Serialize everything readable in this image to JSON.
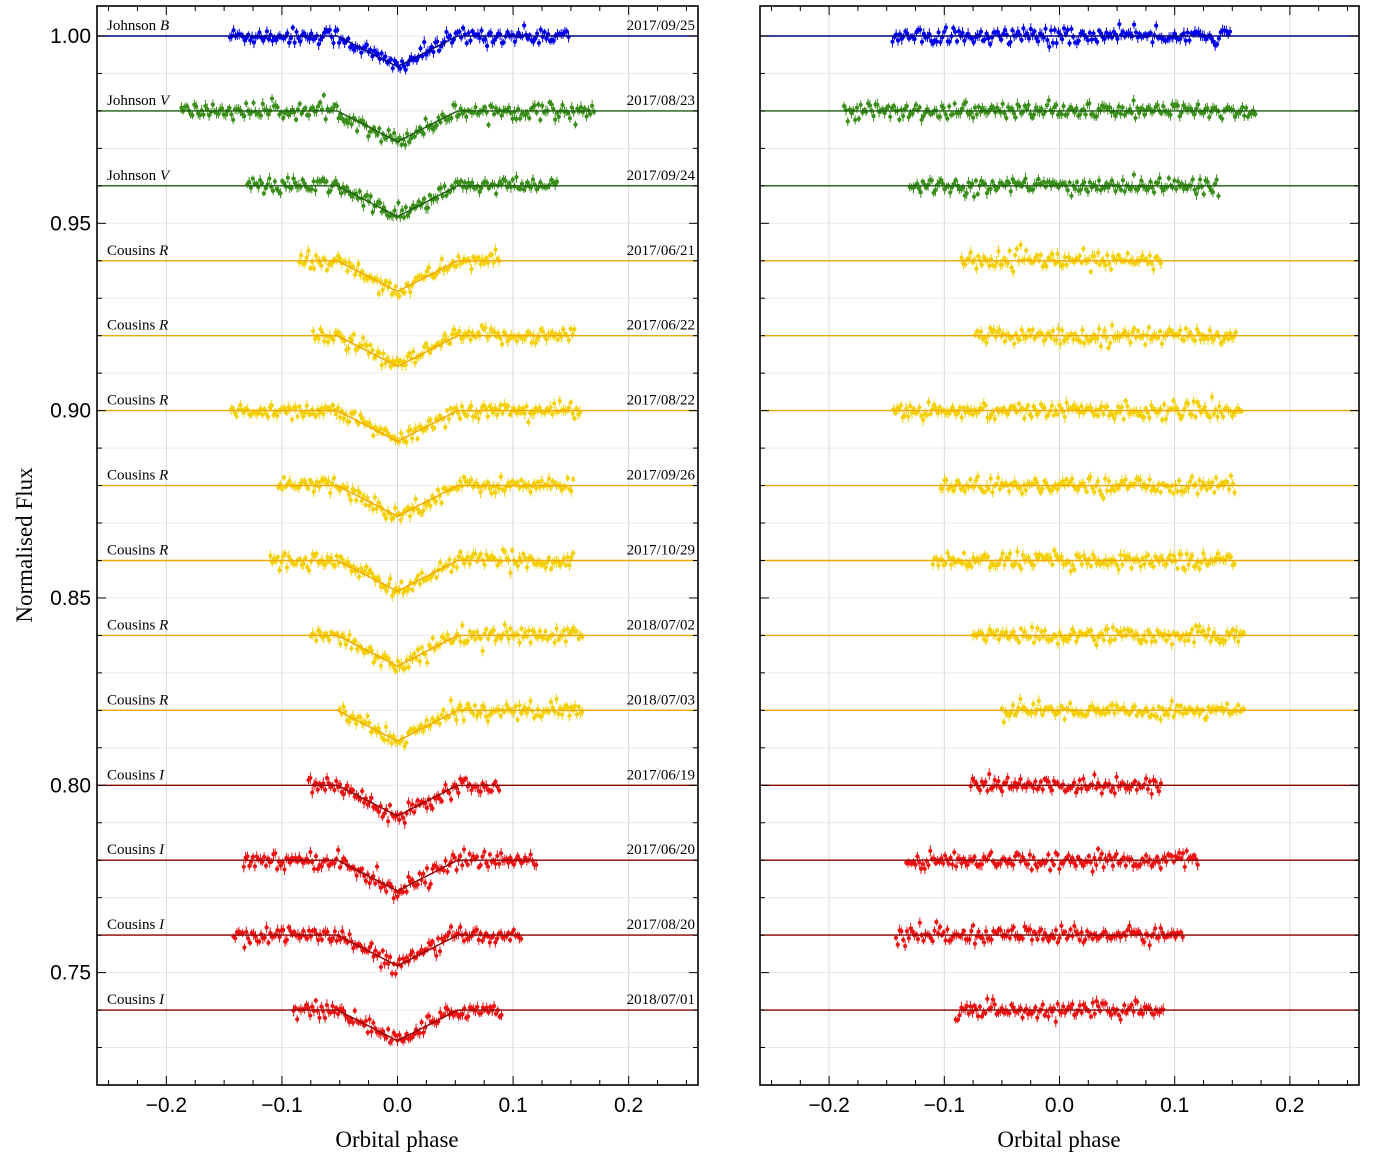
{
  "chart_data": [
    {
      "type": "scatter",
      "panel": "light curves with transit model",
      "xlabel": "Orbital phase",
      "ylabel": "Normalised Flux",
      "xlim": [
        -0.26,
        0.26
      ],
      "ylim": [
        0.72,
        1.008
      ],
      "xticks": [
        -0.2,
        -0.1,
        0.0,
        0.1,
        0.2
      ],
      "xtick_labels": [
        "−0.2",
        "−0.1",
        "0.0",
        "0.1",
        "0.2"
      ],
      "yticks": [
        0.75,
        0.8,
        0.85,
        0.9,
        0.95,
        1.0
      ],
      "ytick_labels": [
        "0.75",
        "0.80",
        "0.85",
        "0.90",
        "0.95",
        "1.00"
      ],
      "grid": true,
      "transit": {
        "depth": 0.0165,
        "ingress_start": -0.052,
        "full_start": -0.04,
        "full_end": 0.04,
        "egress_end": 0.052
      },
      "series": [
        {
          "band": "Johnson",
          "filter": "B",
          "date": "2017/09/25",
          "baseline": 1.0,
          "x_range": [
            -0.145,
            0.148
          ],
          "color": "#0000ee",
          "model_color": "#000080"
        },
        {
          "band": "Johnson",
          "filter": "V",
          "date": "2017/08/23",
          "baseline": 0.98,
          "x_range": [
            -0.187,
            0.17
          ],
          "color": "#3a8f1a",
          "model_color": "#1e5b10"
        },
        {
          "band": "Johnson",
          "filter": "V",
          "date": "2017/09/24",
          "baseline": 0.96,
          "x_range": [
            -0.13,
            0.138
          ],
          "color": "#3a8f1a",
          "model_color": "#1e5b10"
        },
        {
          "band": "Cousins",
          "filter": "R",
          "date": "2017/06/21",
          "baseline": 0.94,
          "x_range": [
            -0.085,
            0.088
          ],
          "color": "#f5d000",
          "model_color": "#f0a800"
        },
        {
          "band": "Cousins",
          "filter": "R",
          "date": "2017/06/22",
          "baseline": 0.92,
          "x_range": [
            -0.073,
            0.153
          ],
          "color": "#f5d000",
          "model_color": "#f0a800"
        },
        {
          "band": "Cousins",
          "filter": "R",
          "date": "2017/08/22",
          "baseline": 0.9,
          "x_range": [
            -0.144,
            0.158
          ],
          "color": "#f5d000",
          "model_color": "#f0a800"
        },
        {
          "band": "Cousins",
          "filter": "R",
          "date": "2017/09/26",
          "baseline": 0.88,
          "x_range": [
            -0.103,
            0.152
          ],
          "color": "#f5d000",
          "model_color": "#f0a800"
        },
        {
          "band": "Cousins",
          "filter": "R",
          "date": "2017/10/29",
          "baseline": 0.86,
          "x_range": [
            -0.11,
            0.152
          ],
          "color": "#f5d000",
          "model_color": "#f0a800"
        },
        {
          "band": "Cousins",
          "filter": "R",
          "date": "2018/07/02",
          "baseline": 0.84,
          "x_range": [
            -0.075,
            0.16
          ],
          "color": "#f5d000",
          "model_color": "#f0a800"
        },
        {
          "band": "Cousins",
          "filter": "R",
          "date": "2018/07/03",
          "baseline": 0.82,
          "x_range": [
            -0.05,
            0.16
          ],
          "color": "#f5d000",
          "model_color": "#f0a800"
        },
        {
          "band": "Cousins",
          "filter": "I",
          "date": "2017/06/19",
          "baseline": 0.8,
          "x_range": [
            -0.077,
            0.088
          ],
          "color": "#ee1111",
          "model_color": "#8b0000"
        },
        {
          "band": "Cousins",
          "filter": "I",
          "date": "2017/06/20",
          "baseline": 0.78,
          "x_range": [
            -0.133,
            0.12
          ],
          "color": "#ee1111",
          "model_color": "#8b0000"
        },
        {
          "band": "Cousins",
          "filter": "I",
          "date": "2017/08/20",
          "baseline": 0.76,
          "x_range": [
            -0.142,
            0.107
          ],
          "color": "#ee1111",
          "model_color": "#8b0000"
        },
        {
          "band": "Cousins",
          "filter": "I",
          "date": "2018/07/01",
          "baseline": 0.74,
          "x_range": [
            -0.09,
            0.09
          ],
          "color": "#ee1111",
          "model_color": "#8b0000"
        }
      ]
    },
    {
      "type": "scatter",
      "panel": "residuals",
      "xlabel": "Orbital phase",
      "ylabel": "",
      "xlim": [
        -0.26,
        0.26
      ],
      "ylim": [
        0.72,
        1.008
      ],
      "xticks": [
        -0.2,
        -0.1,
        0.0,
        0.1,
        0.2
      ],
      "xtick_labels": [
        "−0.2",
        "−0.1",
        "0.0",
        "0.1",
        "0.2"
      ],
      "grid": true,
      "series_ref": "same baselines and phase ranges as the light-curve panel, flat residuals"
    }
  ]
}
